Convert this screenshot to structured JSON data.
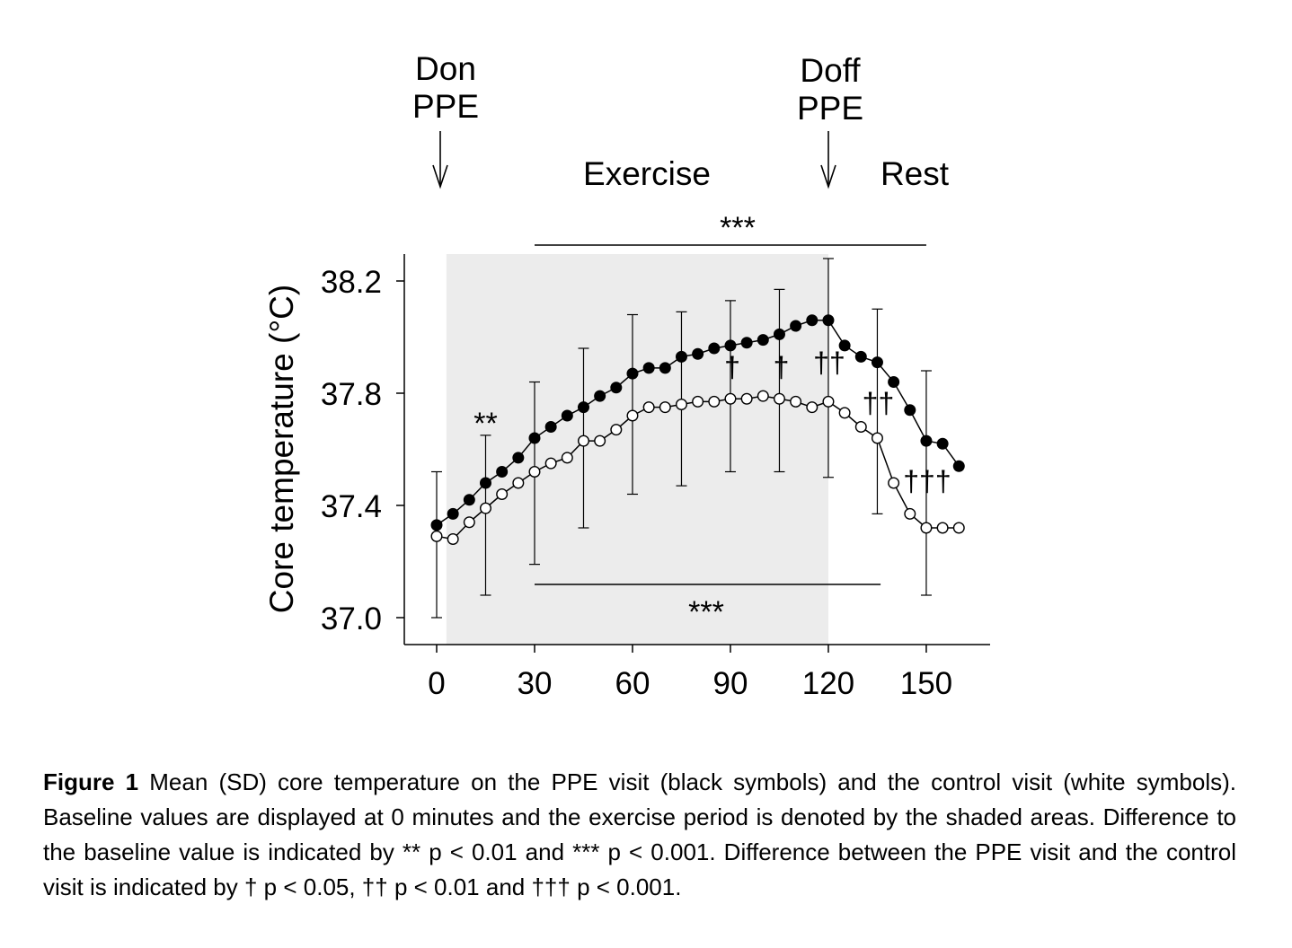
{
  "chart_data": {
    "type": "line",
    "ylabel": "Core temperature (°C)",
    "xlabel": "",
    "ylim": [
      36.9,
      38.3
    ],
    "xlim": [
      -10,
      170
    ],
    "yticks": [
      37.0,
      37.4,
      37.8,
      38.2
    ],
    "ytick_labels": [
      "37.0",
      "37.4",
      "37.8",
      "38.2"
    ],
    "xticks": [
      0,
      30,
      60,
      90,
      120,
      150
    ],
    "xtick_labels": [
      "0",
      "30",
      "60",
      "90",
      "120",
      "150"
    ],
    "shaded_region": {
      "x": [
        3,
        120
      ]
    },
    "series": [
      {
        "fill": "black",
        "x": [
          0,
          5,
          10,
          15,
          20,
          25,
          30,
          35,
          40,
          45,
          50,
          55,
          60,
          65,
          70,
          75,
          80,
          85,
          90,
          95,
          100,
          105,
          110,
          115,
          120,
          125,
          130,
          135,
          140,
          145,
          150,
          155,
          160
        ],
        "values": [
          37.33,
          37.37,
          37.42,
          37.48,
          37.52,
          37.57,
          37.64,
          37.68,
          37.72,
          37.75,
          37.79,
          37.82,
          37.87,
          37.89,
          37.89,
          37.93,
          37.94,
          37.96,
          37.97,
          37.98,
          37.99,
          38.01,
          38.04,
          38.06,
          38.06,
          37.97,
          37.93,
          37.91,
          37.84,
          37.74,
          37.63,
          37.62,
          37.54
        ],
        "error_bars": [
          {
            "x": 0,
            "low": 37.0,
            "high": 37.52
          },
          {
            "x": 15,
            "low": 37.08,
            "high": 37.65
          },
          {
            "x": 30,
            "low": 37.19,
            "high": 37.84
          },
          {
            "x": 45,
            "low": 37.32,
            "high": 37.96
          },
          {
            "x": 60,
            "low": 37.44,
            "high": 38.08
          },
          {
            "x": 75,
            "low": 37.47,
            "high": 38.09
          },
          {
            "x": 90,
            "low": 37.52,
            "high": 38.13
          },
          {
            "x": 105,
            "low": 37.52,
            "high": 38.17
          },
          {
            "x": 120,
            "low": 37.5,
            "high": 38.28
          },
          {
            "x": 135,
            "low": 37.37,
            "high": 38.1
          },
          {
            "x": 150,
            "low": 37.08,
            "high": 37.88
          }
        ]
      },
      {
        "fill": "white",
        "x": [
          0,
          5,
          10,
          15,
          20,
          25,
          30,
          35,
          40,
          45,
          50,
          55,
          60,
          65,
          70,
          75,
          80,
          85,
          90,
          95,
          100,
          105,
          110,
          115,
          120,
          125,
          130,
          135,
          140,
          145,
          150,
          155,
          160
        ],
        "values": [
          37.29,
          37.28,
          37.34,
          37.39,
          37.44,
          37.48,
          37.52,
          37.55,
          37.57,
          37.63,
          37.63,
          37.67,
          37.72,
          37.75,
          37.75,
          37.76,
          37.77,
          37.77,
          37.78,
          37.78,
          37.79,
          37.78,
          37.77,
          37.75,
          37.77,
          37.73,
          37.68,
          37.64,
          37.48,
          37.37,
          37.32,
          37.32,
          37.32
        ]
      }
    ],
    "top_labels": {
      "don": [
        "Don",
        "PPE"
      ],
      "doff": [
        "Doff",
        "PPE"
      ],
      "exercise": "Exercise",
      "rest": "Rest"
    },
    "annotations": {
      "top_bar": {
        "text": "***",
        "x": [
          30,
          150
        ]
      },
      "bottom_bar": {
        "text": "***",
        "x": [
          30,
          136
        ]
      },
      "star2": {
        "text": "**",
        "x": 15
      },
      "dag_90": {
        "text": "†",
        "x": 90
      },
      "dag_105": {
        "text": "†",
        "x": 105
      },
      "dag_120": {
        "text": "††",
        "x": 120
      },
      "dag_135": {
        "text": "††",
        "x": 135
      },
      "dag_150": {
        "text": "†††",
        "x": 150
      }
    }
  },
  "caption": {
    "label": "Figure 1",
    "text": "Mean (SD) core temperature on the PPE visit (black symbols) and the control visit (white symbols).  Baseline values are displayed at 0 minutes and the exercise period is denoted by the shaded areas. Difference to the baseline value is indicated by ** p < 0.01 and *** p < 0.001. Difference between the PPE visit and the control visit is indicated by † p < 0.05, †† p < 0.01 and ††† p < 0.001."
  }
}
